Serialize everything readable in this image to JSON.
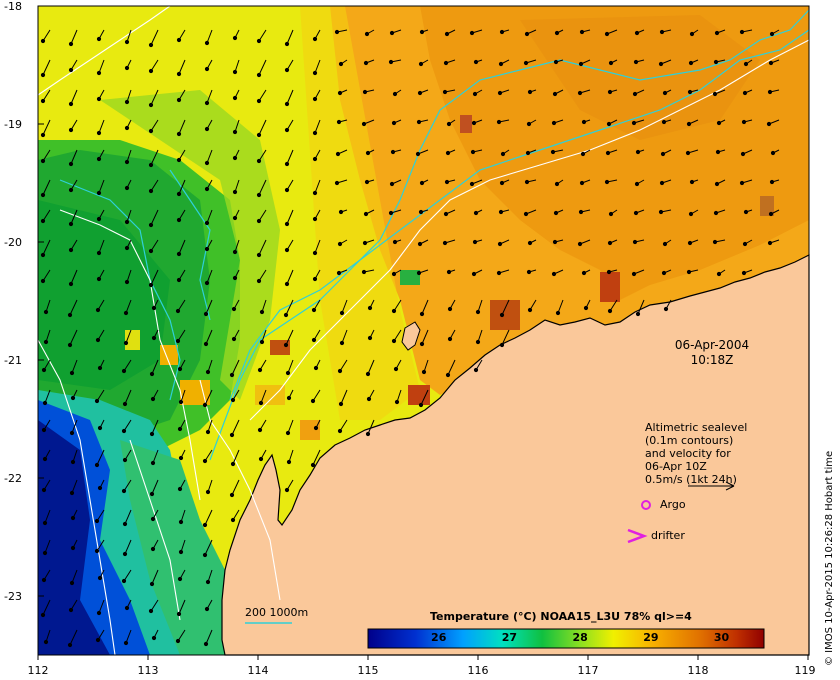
{
  "map": {
    "lat_ticks": [
      "-18",
      "-19",
      "-20",
      "-21",
      "-22",
      "-23"
    ],
    "lon_ticks": [
      "112",
      "113",
      "114",
      "115",
      "116",
      "117",
      "118",
      "119"
    ],
    "lon_range": [
      112,
      119
    ],
    "lat_range": [
      -23.5,
      -18
    ],
    "land_color": "#fac89a",
    "contour_colors": {
      "sealevel": "#ffffff",
      "isobath": "#2fd0d8",
      "argo": "#e020e0",
      "drifter": "#e020e0"
    }
  },
  "datetime": {
    "date": "06-Apr-2004",
    "time": "10:18Z"
  },
  "legend": {
    "lines": [
      "Altimetric sealevel",
      "(0.1m contours)",
      "and velocity for",
      "06-Apr 10Z",
      "0.5m/s (1kt 24h)"
    ],
    "argo_label": "Argo",
    "drifter_label": "drifter",
    "isobath_label": "200  1000m"
  },
  "colorbar": {
    "title": "Temperature (°C) NOAA15_L3U 78% ql>=4",
    "ticks": [
      "26",
      "27",
      "28",
      "29",
      "30"
    ],
    "range": [
      25,
      30.6
    ]
  },
  "credit": "© IMOS 10-Apr-2015 10:26:28 Hobart time"
}
